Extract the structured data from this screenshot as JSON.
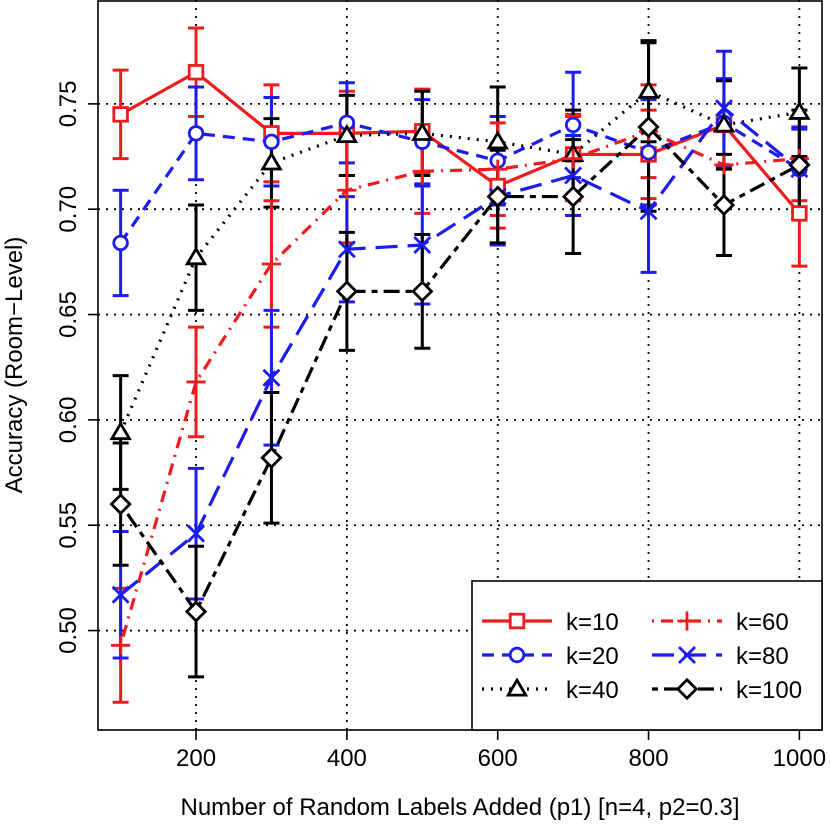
{
  "chart_data": {
    "type": "line",
    "xlabel": "Number of Random Labels Added (p1) [n=4, p2=0.3]",
    "ylabel": "Accuracy (Room−Level)",
    "xlim": [
      70,
      1030
    ],
    "ylim": [
      0.4528,
      0.7993
    ],
    "x_ticks": [
      200,
      400,
      600,
      800,
      1000
    ],
    "x_tick_labels": [
      "200",
      "400",
      "600",
      "800",
      "1000"
    ],
    "y_ticks": [
      0.5,
      0.55,
      0.6,
      0.65,
      0.7,
      0.75
    ],
    "y_tick_labels": [
      "0.50",
      "0.55",
      "0.60",
      "0.65",
      "0.70",
      "0.75"
    ],
    "grid": true,
    "legend_position": "bottom-right",
    "x": [
      100,
      200,
      300,
      400,
      500,
      600,
      700,
      800,
      900,
      1000
    ],
    "series": [
      {
        "name": "k=10",
        "color": "#ee1c1c",
        "dash": "solid",
        "marker": "square",
        "values": [
          0.745,
          0.765,
          0.736,
          0.736,
          0.737,
          0.711,
          0.726,
          0.726,
          0.74,
          0.698
        ],
        "err": [
          0.021,
          0.021,
          0.023,
          0.02,
          0.02,
          0.02,
          0.019,
          0.021,
          0.021,
          0.025
        ]
      },
      {
        "name": "k=20",
        "color": "#1c1cee",
        "dash": "dashed",
        "marker": "circle",
        "values": [
          0.684,
          0.736,
          0.732,
          0.741,
          0.732,
          0.723,
          0.74,
          0.727,
          0.741,
          0.719
        ],
        "err": [
          0.025,
          0.022,
          0.021,
          0.019,
          0.02,
          0.021,
          0.025,
          0.025,
          0.021,
          0.019
        ]
      },
      {
        "name": "k=40",
        "color": "#000000",
        "dash": "dotted",
        "marker": "triangle",
        "values": [
          0.594,
          0.677,
          0.722,
          0.735,
          0.736,
          0.732,
          0.726,
          0.756,
          0.74,
          0.746
        ],
        "err": [
          0.027,
          0.025,
          0.021,
          0.019,
          0.02,
          0.026,
          0.021,
          0.024,
          0.021,
          0.021
        ]
      },
      {
        "name": "k=60",
        "color": "#ee1c1c",
        "dash": "dotdash",
        "marker": "plus",
        "values": [
          0.493,
          0.618,
          0.674,
          0.709,
          0.718,
          0.719,
          0.724,
          0.737,
          0.721,
          0.724
        ],
        "err": [
          0.027,
          0.026,
          0.03,
          0.025,
          0.02,
          0.022,
          0.02,
          0.022,
          0.019,
          0.02
        ]
      },
      {
        "name": "k=80",
        "color": "#1c1cee",
        "dash": "longdash",
        "marker": "cross",
        "values": [
          0.517,
          0.546,
          0.62,
          0.681,
          0.683,
          0.706,
          0.716,
          0.699,
          0.748,
          0.719
        ],
        "err": [
          0.03,
          0.031,
          0.032,
          0.025,
          0.028,
          0.023,
          0.019,
          0.029,
          0.027,
          0.02
        ]
      },
      {
        "name": "k=100",
        "color": "#000000",
        "dash": "twodash",
        "marker": "diamond",
        "values": [
          0.56,
          0.509,
          0.582,
          0.661,
          0.661,
          0.706,
          0.706,
          0.739,
          0.702,
          0.721
        ],
        "err": [
          0.029,
          0.031,
          0.031,
          0.028,
          0.027,
          0.022,
          0.027,
          0.04,
          0.024,
          0.026
        ]
      }
    ]
  }
}
